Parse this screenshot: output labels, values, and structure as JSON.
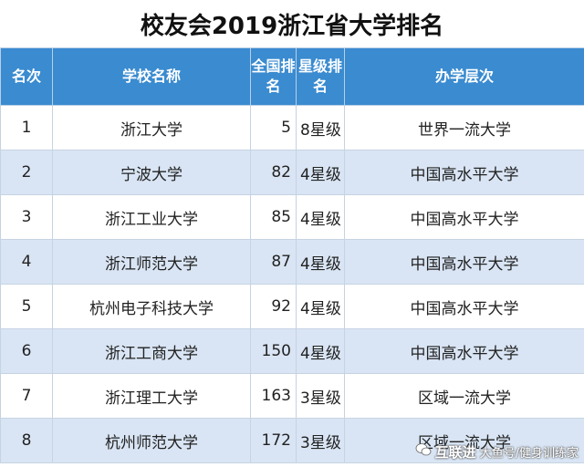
{
  "title": "校友会2019浙江省大学排名",
  "headers": {
    "rank": "名次",
    "school": "学校名称",
    "national_rank": "全国排名",
    "star_level": "星级排名",
    "tier": "办学层次"
  },
  "rows": [
    {
      "rank": "1",
      "school": "浙江大学",
      "national_rank": "5",
      "star_level": "8星级",
      "tier": "世界一流大学"
    },
    {
      "rank": "2",
      "school": "宁波大学",
      "national_rank": "82",
      "star_level": "4星级",
      "tier": "中国高水平大学"
    },
    {
      "rank": "3",
      "school": "浙江工业大学",
      "national_rank": "85",
      "star_level": "4星级",
      "tier": "中国高水平大学"
    },
    {
      "rank": "4",
      "school": "浙江师范大学",
      "national_rank": "87",
      "star_level": "4星级",
      "tier": "中国高水平大学"
    },
    {
      "rank": "5",
      "school": "杭州电子科技大学",
      "national_rank": "92",
      "star_level": "4星级",
      "tier": "中国高水平大学"
    },
    {
      "rank": "6",
      "school": "浙江工商大学",
      "national_rank": "150",
      "star_level": "4星级",
      "tier": "中国高水平大学"
    },
    {
      "rank": "7",
      "school": "浙江理工大学",
      "national_rank": "163",
      "star_level": "3星级",
      "tier": "区域一流大学"
    },
    {
      "rank": "8",
      "school": "杭州师范大学",
      "national_rank": "172",
      "star_level": "3星级",
      "tier": "区域一流大学"
    }
  ],
  "watermark": {
    "brand": "互联进",
    "subtitle": "大鱼号/健身训练家",
    "icon": "wechat-icon"
  }
}
